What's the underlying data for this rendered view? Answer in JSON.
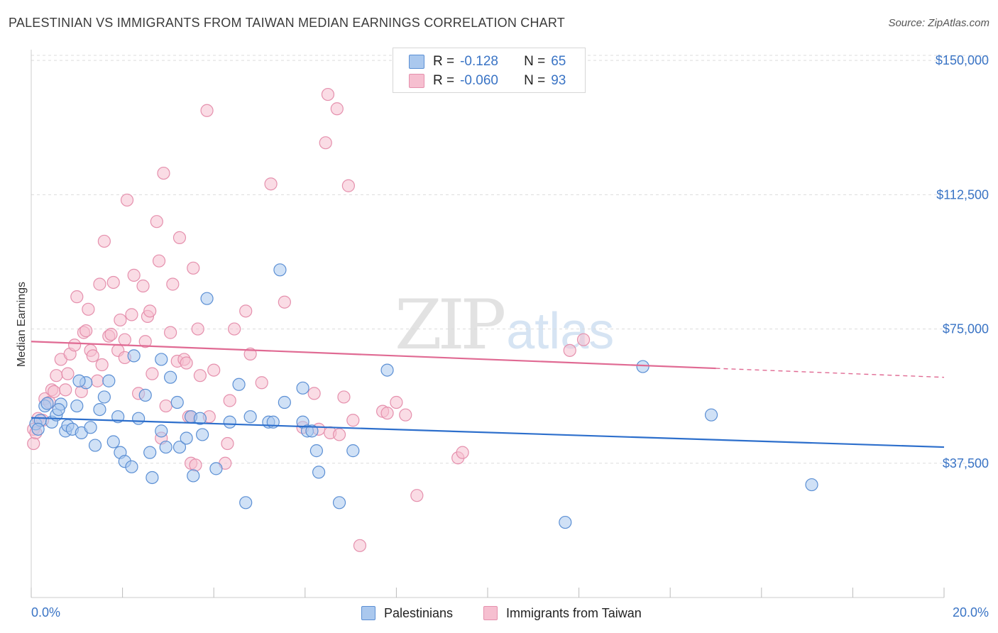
{
  "title": "PALESTINIAN VS IMMIGRANTS FROM TAIWAN MEDIAN EARNINGS CORRELATION CHART",
  "source": "Source: ZipAtlas.com",
  "watermark": {
    "zip": "ZIP",
    "atlas": "atlas"
  },
  "legend": {
    "rows": [
      {
        "r_label": "R =",
        "r_value": "-0.128",
        "n_label": "N =",
        "n_value": "65"
      },
      {
        "r_label": "R =",
        "r_value": "-0.060",
        "n_label": "N =",
        "n_value": "93"
      }
    ]
  },
  "bottom_legend": {
    "series1": "Palestinians",
    "series2": "Immigrants from Taiwan"
  },
  "colors": {
    "blue_fill": "#aac8ee",
    "blue_stroke": "#5b8fd4",
    "blue_line": "#2d6fcc",
    "pink_fill": "#f6bfd0",
    "pink_stroke": "#e590ad",
    "pink_line": "#e06a93",
    "tick_text": "#3a74c5",
    "grid": "#dcdcdc"
  },
  "chart_data": {
    "type": "scatter",
    "title": "PALESTINIAN VS IMMIGRANTS FROM TAIWAN MEDIAN EARNINGS CORRELATION CHART",
    "xlabel": "",
    "ylabel": "Median Earnings",
    "xlim": [
      0,
      20
    ],
    "ylim": [
      0,
      153000
    ],
    "x_tick_labels": [
      "0.0%",
      "20.0%"
    ],
    "y_ticks": [
      37500,
      75000,
      112500,
      150000
    ],
    "y_tick_labels": [
      "$37,500",
      "$75,000",
      "$112,500",
      "$150,000"
    ],
    "grid": true,
    "legend_position": "top-center",
    "series": [
      {
        "name": "Palestinians",
        "r": -0.128,
        "n": 65,
        "trend": {
          "x": [
            0,
            20
          ],
          "y": [
            50200,
            42000
          ]
        },
        "points": [
          [
            0.1,
            48500
          ],
          [
            0.2,
            49500
          ],
          [
            0.3,
            53500
          ],
          [
            0.35,
            54200
          ],
          [
            0.45,
            49000
          ],
          [
            0.55,
            51000
          ],
          [
            0.65,
            54000
          ],
          [
            0.75,
            46500
          ],
          [
            0.8,
            48000
          ],
          [
            0.9,
            47000
          ],
          [
            1.0,
            53500
          ],
          [
            1.1,
            46000
          ],
          [
            1.2,
            60000
          ],
          [
            1.3,
            47500
          ],
          [
            1.4,
            42500
          ],
          [
            1.5,
            52500
          ],
          [
            1.6,
            56000
          ],
          [
            1.7,
            60500
          ],
          [
            1.8,
            43500
          ],
          [
            1.9,
            50500
          ],
          [
            1.95,
            40500
          ],
          [
            2.05,
            38000
          ],
          [
            2.2,
            36500
          ],
          [
            2.35,
            50000
          ],
          [
            2.25,
            67500
          ],
          [
            2.5,
            56500
          ],
          [
            2.6,
            40500
          ],
          [
            2.65,
            33500
          ],
          [
            2.85,
            46500
          ],
          [
            2.85,
            66500
          ],
          [
            2.95,
            42000
          ],
          [
            3.05,
            61500
          ],
          [
            3.2,
            54500
          ],
          [
            3.25,
            42000
          ],
          [
            3.4,
            44500
          ],
          [
            3.5,
            50500
          ],
          [
            3.55,
            34000
          ],
          [
            3.7,
            50000
          ],
          [
            3.75,
            45500
          ],
          [
            3.85,
            83500
          ],
          [
            4.05,
            36000
          ],
          [
            4.35,
            49000
          ],
          [
            4.55,
            59500
          ],
          [
            4.7,
            26500
          ],
          [
            4.8,
            50500
          ],
          [
            5.2,
            49000
          ],
          [
            5.3,
            49000
          ],
          [
            5.45,
            91500
          ],
          [
            5.55,
            54500
          ],
          [
            5.95,
            49000
          ],
          [
            5.95,
            58500
          ],
          [
            6.05,
            46500
          ],
          [
            6.15,
            46500
          ],
          [
            6.25,
            41000
          ],
          [
            6.3,
            35000
          ],
          [
            6.75,
            26500
          ],
          [
            7.05,
            41000
          ],
          [
            7.8,
            63500
          ],
          [
            11.7,
            21000
          ],
          [
            13.4,
            64500
          ],
          [
            14.9,
            51000
          ],
          [
            17.1,
            31500
          ],
          [
            0.15,
            47000
          ],
          [
            0.6,
            52500
          ],
          [
            1.05,
            60500
          ]
        ]
      },
      {
        "name": "Immigrants from Taiwan",
        "r": -0.06,
        "n": 93,
        "trend": {
          "x": [
            0,
            15
          ],
          "y": [
            71500,
            64000
          ]
        },
        "trend_dashed": {
          "x": [
            15,
            20
          ],
          "y": [
            64000,
            61500
          ]
        },
        "points": [
          [
            0.05,
            43000
          ],
          [
            0.05,
            47000
          ],
          [
            0.1,
            46000
          ],
          [
            0.15,
            50000
          ],
          [
            0.25,
            49500
          ],
          [
            0.3,
            55500
          ],
          [
            0.4,
            54500
          ],
          [
            0.45,
            58000
          ],
          [
            0.5,
            57500
          ],
          [
            0.55,
            62000
          ],
          [
            0.65,
            66500
          ],
          [
            0.75,
            58000
          ],
          [
            0.8,
            62500
          ],
          [
            0.85,
            68000
          ],
          [
            0.95,
            70500
          ],
          [
            1.0,
            84000
          ],
          [
            1.1,
            57500
          ],
          [
            1.15,
            74000
          ],
          [
            1.2,
            74500
          ],
          [
            1.25,
            80500
          ],
          [
            1.3,
            69000
          ],
          [
            1.35,
            67500
          ],
          [
            1.45,
            60500
          ],
          [
            1.55,
            65000
          ],
          [
            1.5,
            87500
          ],
          [
            1.6,
            99500
          ],
          [
            1.7,
            73000
          ],
          [
            1.75,
            73500
          ],
          [
            1.8,
            88000
          ],
          [
            1.9,
            69000
          ],
          [
            1.95,
            77500
          ],
          [
            2.05,
            72000
          ],
          [
            2.05,
            67000
          ],
          [
            2.1,
            111000
          ],
          [
            2.2,
            79000
          ],
          [
            2.25,
            90000
          ],
          [
            2.35,
            57000
          ],
          [
            2.45,
            87000
          ],
          [
            2.5,
            71500
          ],
          [
            2.55,
            78500
          ],
          [
            2.6,
            80000
          ],
          [
            2.65,
            62500
          ],
          [
            2.75,
            105000
          ],
          [
            2.8,
            94000
          ],
          [
            2.85,
            44500
          ],
          [
            2.9,
            118500
          ],
          [
            2.95,
            53500
          ],
          [
            3.05,
            74000
          ],
          [
            3.1,
            87500
          ],
          [
            3.2,
            66000
          ],
          [
            3.25,
            100500
          ],
          [
            3.35,
            66500
          ],
          [
            3.4,
            65500
          ],
          [
            3.45,
            50500
          ],
          [
            3.5,
            37500
          ],
          [
            3.5,
            50500
          ],
          [
            3.55,
            92000
          ],
          [
            3.6,
            37000
          ],
          [
            3.65,
            75000
          ],
          [
            3.7,
            62000
          ],
          [
            3.85,
            136000
          ],
          [
            3.9,
            50500
          ],
          [
            4.0,
            63500
          ],
          [
            4.25,
            37500
          ],
          [
            4.3,
            43000
          ],
          [
            4.35,
            55000
          ],
          [
            4.45,
            75000
          ],
          [
            4.7,
            80000
          ],
          [
            4.8,
            68000
          ],
          [
            5.05,
            60000
          ],
          [
            5.25,
            115500
          ],
          [
            5.55,
            82500
          ],
          [
            5.95,
            47500
          ],
          [
            6.2,
            57000
          ],
          [
            6.3,
            47000
          ],
          [
            6.45,
            127000
          ],
          [
            6.5,
            140500
          ],
          [
            6.55,
            46000
          ],
          [
            6.7,
            136500
          ],
          [
            6.75,
            45500
          ],
          [
            6.85,
            56000
          ],
          [
            6.95,
            115000
          ],
          [
            7.05,
            49500
          ],
          [
            7.2,
            14500
          ],
          [
            7.7,
            52000
          ],
          [
            7.8,
            51500
          ],
          [
            8.0,
            54500
          ],
          [
            8.2,
            51000
          ],
          [
            8.45,
            28500
          ],
          [
            9.35,
            39000
          ],
          [
            9.45,
            40500
          ],
          [
            11.8,
            69000
          ],
          [
            12.1,
            72000
          ]
        ]
      }
    ]
  }
}
